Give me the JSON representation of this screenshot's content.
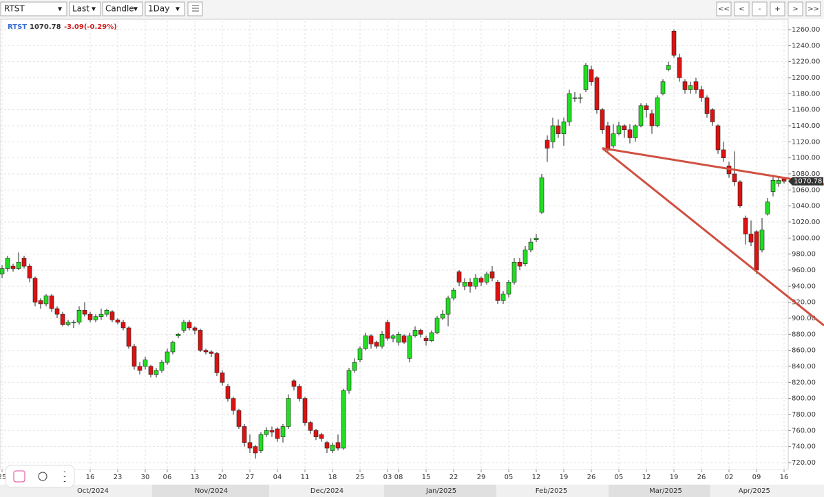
{
  "toolbar": {
    "symbol": "RTST",
    "price_type": "Last",
    "chart_style": "Candle",
    "interval": "1Day",
    "buttons": [
      "<<",
      "<",
      "-",
      "+",
      ">",
      ">>"
    ]
  },
  "chart_data": {
    "type": "candlestick",
    "header": {
      "symbol": "RTST",
      "price": "1070.78",
      "change": "-3.09(-0.29%)"
    },
    "up_color": "#22dd22",
    "down_color": "#dd1111",
    "grid": true,
    "candles": [
      [
        955,
        966,
        950,
        962
      ],
      [
        962,
        978,
        958,
        975
      ],
      [
        965,
        968,
        958,
        962
      ],
      [
        962,
        982,
        960,
        970
      ],
      [
        975,
        978,
        962,
        965
      ],
      [
        965,
        968,
        945,
        950
      ],
      [
        950,
        952,
        915,
        920
      ],
      [
        922,
        925,
        912,
        918
      ],
      [
        918,
        930,
        915,
        928
      ],
      [
        928,
        930,
        908,
        912
      ],
      [
        912,
        915,
        900,
        905
      ],
      [
        905,
        908,
        890,
        892
      ],
      [
        892,
        898,
        890,
        895
      ],
      [
        895,
        898,
        888,
        895
      ],
      [
        895,
        915,
        892,
        910
      ],
      [
        910,
        920,
        902,
        905
      ],
      [
        905,
        908,
        895,
        898
      ],
      [
        898,
        905,
        895,
        902
      ],
      [
        902,
        912,
        898,
        905
      ],
      [
        905,
        912,
        902,
        910
      ],
      [
        908,
        910,
        895,
        898
      ],
      [
        898,
        900,
        892,
        895
      ],
      [
        895,
        898,
        885,
        888
      ],
      [
        888,
        890,
        862,
        865
      ],
      [
        865,
        868,
        836,
        840
      ],
      [
        840,
        845,
        830,
        835
      ],
      [
        840,
        852,
        836,
        848
      ],
      [
        840,
        842,
        826,
        830
      ],
      [
        830,
        838,
        826,
        835
      ],
      [
        835,
        848,
        832,
        845
      ],
      [
        845,
        862,
        842,
        858
      ],
      [
        858,
        872,
        855,
        870
      ],
      [
        878,
        882,
        875,
        880
      ],
      [
        885,
        898,
        882,
        895
      ],
      [
        895,
        898,
        885,
        888
      ],
      [
        888,
        890,
        880,
        885
      ],
      [
        885,
        887,
        858,
        860
      ],
      [
        860,
        862,
        855,
        858
      ],
      [
        858,
        860,
        852,
        856
      ],
      [
        856,
        858,
        828,
        832
      ],
      [
        832,
        835,
        816,
        820
      ],
      [
        815,
        818,
        796,
        800
      ],
      [
        800,
        802,
        780,
        785
      ],
      [
        785,
        787,
        762,
        765
      ],
      [
        765,
        768,
        740,
        745
      ],
      [
        745,
        755,
        732,
        738
      ],
      [
        740,
        742,
        725,
        732
      ],
      [
        735,
        758,
        732,
        755
      ],
      [
        755,
        764,
        752,
        760
      ],
      [
        760,
        765,
        752,
        758
      ],
      [
        762,
        764,
        746,
        750
      ],
      [
        752,
        768,
        745,
        765
      ],
      [
        765,
        805,
        762,
        800
      ],
      [
        822,
        824,
        810,
        815
      ],
      [
        815,
        818,
        796,
        800
      ],
      [
        800,
        802,
        766,
        770
      ],
      [
        770,
        772,
        756,
        760
      ],
      [
        760,
        762,
        748,
        752
      ],
      [
        755,
        757,
        746,
        750
      ],
      [
        745,
        747,
        732,
        738
      ],
      [
        735,
        745,
        732,
        742
      ],
      [
        745,
        755,
        735,
        738
      ],
      [
        738,
        812,
        736,
        810
      ],
      [
        810,
        838,
        806,
        835
      ],
      [
        835,
        850,
        832,
        845
      ],
      [
        848,
        865,
        845,
        862
      ],
      [
        862,
        882,
        860,
        878
      ],
      [
        878,
        880,
        862,
        868
      ],
      [
        870,
        872,
        862,
        865
      ],
      [
        865,
        884,
        862,
        880
      ],
      [
        895,
        898,
        872,
        875
      ],
      [
        875,
        880,
        870,
        878
      ],
      [
        870,
        883,
        866,
        880
      ],
      [
        878,
        880,
        868,
        870
      ],
      [
        850,
        882,
        845,
        878
      ],
      [
        878,
        890,
        876,
        885
      ],
      [
        885,
        887,
        876,
        880
      ],
      [
        875,
        878,
        866,
        872
      ],
      [
        872,
        885,
        870,
        882
      ],
      [
        882,
        903,
        880,
        900
      ],
      [
        900,
        910,
        898,
        905
      ],
      [
        905,
        928,
        890,
        925
      ],
      [
        925,
        938,
        922,
        935
      ],
      [
        958,
        960,
        940,
        945
      ],
      [
        940,
        950,
        935,
        945
      ],
      [
        945,
        950,
        932,
        940
      ],
      [
        940,
        955,
        936,
        950
      ],
      [
        950,
        952,
        940,
        945
      ],
      [
        945,
        958,
        942,
        955
      ],
      [
        958,
        965,
        946,
        950
      ],
      [
        945,
        948,
        918,
        922
      ],
      [
        922,
        934,
        918,
        930
      ],
      [
        930,
        948,
        926,
        945
      ],
      [
        945,
        975,
        942,
        970
      ],
      [
        970,
        975,
        960,
        965
      ],
      [
        968,
        990,
        965,
        985
      ],
      [
        985,
        1000,
        982,
        995
      ],
      [
        998,
        1005,
        995,
        1000
      ],
      [
        1032,
        1080,
        1030,
        1075
      ],
      [
        1122,
        1128,
        1095,
        1112
      ],
      [
        1120,
        1150,
        1112,
        1140
      ],
      [
        1140,
        1148,
        1125,
        1130
      ],
      [
        1130,
        1150,
        1115,
        1145
      ],
      [
        1145,
        1185,
        1140,
        1180
      ],
      [
        1174,
        1182,
        1170,
        1175
      ],
      [
        1175,
        1180,
        1168,
        1175
      ],
      [
        1185,
        1218,
        1182,
        1215
      ],
      [
        1210,
        1215,
        1190,
        1195
      ],
      [
        1200,
        1202,
        1155,
        1160
      ],
      [
        1160,
        1162,
        1130,
        1135
      ],
      [
        1140,
        1145,
        1108,
        1112
      ],
      [
        1115,
        1142,
        1112,
        1130
      ],
      [
        1130,
        1145,
        1128,
        1140
      ],
      [
        1140,
        1142,
        1125,
        1135
      ],
      [
        1135,
        1142,
        1118,
        1125
      ],
      [
        1125,
        1142,
        1120,
        1140
      ],
      [
        1140,
        1168,
        1138,
        1165
      ],
      [
        1165,
        1168,
        1150,
        1160
      ],
      [
        1155,
        1160,
        1130,
        1140
      ],
      [
        1140,
        1178,
        1138,
        1175
      ],
      [
        1180,
        1198,
        1178,
        1195
      ],
      [
        1210,
        1220,
        1208,
        1215
      ],
      [
        1258,
        1260,
        1225,
        1228
      ],
      [
        1225,
        1230,
        1195,
        1200
      ],
      [
        1195,
        1198,
        1180,
        1185
      ],
      [
        1185,
        1195,
        1180,
        1190
      ],
      [
        1195,
        1200,
        1180,
        1185
      ],
      [
        1185,
        1190,
        1170,
        1175
      ],
      [
        1175,
        1178,
        1150,
        1155
      ],
      [
        1160,
        1162,
        1140,
        1145
      ],
      [
        1140,
        1142,
        1105,
        1110
      ],
      [
        1110,
        1120,
        1095,
        1100
      ],
      [
        1090,
        1095,
        1075,
        1080
      ],
      [
        1080,
        1108,
        1065,
        1070
      ],
      [
        1070,
        1072,
        1038,
        1040
      ],
      [
        1025,
        1028,
        992,
        1005
      ],
      [
        1005,
        1022,
        990,
        995
      ],
      [
        1008,
        1010,
        955,
        960
      ],
      [
        985,
        1025,
        982,
        1010
      ],
      [
        1030,
        1050,
        1028,
        1045
      ],
      [
        1058,
        1076,
        1052,
        1072
      ],
      [
        1068,
        1076,
        1064,
        1072
      ],
      [
        1073.87,
        1076,
        1068,
        1070.78
      ]
    ],
    "trendlines": [
      {
        "color": "#d05040",
        "x": [
          109,
          149.25
        ],
        "y": [
          1112,
          1067
        ]
      },
      {
        "color": "#d05040",
        "x": [
          109,
          149.25
        ],
        "y": [
          1112,
          891
        ]
      }
    ],
    "xlim": [
      -0.375,
      142.75
    ],
    "xticks": [
      {
        "value": 0,
        "label": "25"
      },
      {
        "value": 16,
        "label": "16"
      },
      {
        "value": 21,
        "label": "23"
      },
      {
        "value": 26,
        "label": "30"
      },
      {
        "value": 30,
        "label": "06"
      },
      {
        "value": 35,
        "label": "13"
      },
      {
        "value": 40,
        "label": "20"
      },
      {
        "value": 45,
        "label": "27"
      },
      {
        "value": 50,
        "label": "04"
      },
      {
        "value": 55,
        "label": "11"
      },
      {
        "value": 60,
        "label": "18"
      },
      {
        "value": 65,
        "label": "25"
      },
      {
        "value": 70,
        "label": "03"
      },
      {
        "value": 72,
        "label": "08"
      },
      {
        "value": 77,
        "label": "15"
      },
      {
        "value": 82,
        "label": "22"
      },
      {
        "value": 87,
        "label": "29"
      },
      {
        "value": 92,
        "label": "05"
      },
      {
        "value": 97,
        "label": "12"
      },
      {
        "value": 102,
        "label": "19"
      },
      {
        "value": 107,
        "label": "26"
      },
      {
        "value": 112,
        "label": "05"
      },
      {
        "value": 117,
        "label": "12"
      },
      {
        "value": 122,
        "label": "19"
      },
      {
        "value": 127,
        "label": "26"
      },
      {
        "value": 132,
        "label": "02"
      },
      {
        "value": 137,
        "label": "09"
      },
      {
        "value": 142,
        "label": "16"
      }
    ],
    "months": [
      {
        "value": 16.5,
        "label": "Oct/2024"
      },
      {
        "value": 38,
        "label": "Nov/2024"
      },
      {
        "value": 59,
        "label": "Dec/2024"
      },
      {
        "value": 79.75,
        "label": "Jan/2025"
      },
      {
        "value": 99.75,
        "label": "Feb/2025"
      },
      {
        "value": 120.5,
        "label": "Mar/2025"
      },
      {
        "value": 136.6,
        "label": "Apr/2025"
      }
    ],
    "ylim": [
      711.4,
      1271.1
    ],
    "yticks": [
      {
        "value": 720,
        "label": "720.00"
      },
      {
        "value": 740,
        "label": "740.00"
      },
      {
        "value": 760,
        "label": "760.00"
      },
      {
        "value": 780,
        "label": "780.00"
      },
      {
        "value": 800,
        "label": "800.00"
      },
      {
        "value": 820,
        "label": "820.00"
      },
      {
        "value": 840,
        "label": "840.00"
      },
      {
        "value": 860,
        "label": "860.00"
      },
      {
        "value": 880,
        "label": "880.00"
      },
      {
        "value": 900,
        "label": "900.00"
      },
      {
        "value": 920,
        "label": "920.00"
      },
      {
        "value": 940,
        "label": "940.00"
      },
      {
        "value": 960,
        "label": "960.00"
      },
      {
        "value": 980,
        "label": "980.00"
      },
      {
        "value": 1000,
        "label": "1000.00"
      },
      {
        "value": 1020,
        "label": "1020.00"
      },
      {
        "value": 1040,
        "label": "1040.00"
      },
      {
        "value": 1060,
        "label": "1060.00"
      },
      {
        "value": 1080,
        "label": "1080.00"
      },
      {
        "value": 1100,
        "label": "1100.00"
      },
      {
        "value": 1120,
        "label": "1120.00"
      },
      {
        "value": 1140,
        "label": "1140.00"
      },
      {
        "value": 1160,
        "label": "1160.00"
      },
      {
        "value": 1180,
        "label": "1180.00"
      },
      {
        "value": 1200,
        "label": "1200.00"
      },
      {
        "value": 1220,
        "label": "1220.00"
      },
      {
        "value": 1240,
        "label": "1240.00"
      },
      {
        "value": 1260,
        "label": "1260.00"
      }
    ]
  }
}
